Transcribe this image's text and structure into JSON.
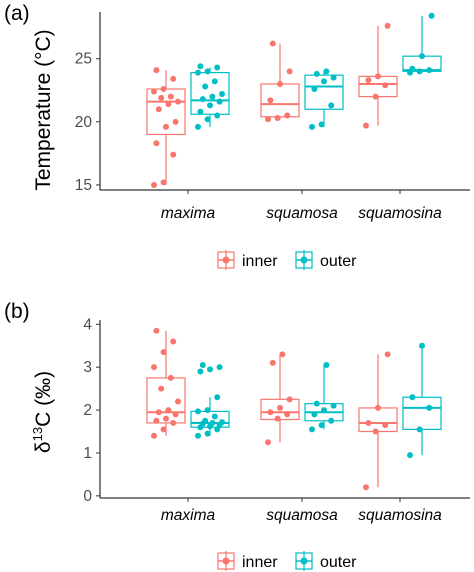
{
  "colors": {
    "inner": "#F8766D",
    "outer": "#00BFC4"
  },
  "legend": [
    "inner",
    "outer"
  ],
  "chart_data": [
    {
      "panel_tag": "(a)",
      "type": "box",
      "categories": [
        "maxima",
        "squamosa",
        "squamosina"
      ],
      "ylabel": "Temperature (°C)",
      "ylim": [
        14.6,
        28.7
      ],
      "yticks": [
        15,
        20,
        25
      ],
      "grid": false,
      "legend_position": "bottom",
      "series": [
        {
          "name": "inner",
          "boxes": [
            {
              "min": 15.0,
              "q1": 19.0,
              "median": 21.6,
              "q3": 22.6,
              "max": 24.1
            },
            {
              "min": 20.2,
              "q1": 20.4,
              "median": 21.4,
              "q3": 23.0,
              "max": 26.2
            },
            {
              "min": 19.7,
              "q1": 22.0,
              "median": 23.0,
              "q3": 23.6,
              "max": 27.6
            }
          ],
          "points": [
            [
              15.0,
              15.2,
              17.4,
              18.3,
              19.6,
              20.0,
              21.0,
              21.4,
              21.6,
              21.9,
              22.0,
              22.4,
              22.6,
              23.4,
              24.1
            ],
            [
              20.2,
              20.3,
              20.5,
              21.7,
              23.0,
              24.0,
              26.2
            ],
            [
              19.7,
              22.0,
              22.9,
              23.3,
              23.6,
              27.6
            ]
          ]
        },
        {
          "name": "outer",
          "boxes": [
            {
              "min": 19.6,
              "q1": 20.6,
              "median": 21.7,
              "q3": 23.9,
              "max": 24.3
            },
            {
              "min": 19.6,
              "q1": 21.0,
              "median": 22.8,
              "q3": 23.7,
              "max": 24.0
            },
            {
              "min": 23.9,
              "q1": 24.0,
              "median": 24.1,
              "q3": 25.2,
              "max": 28.4
            }
          ],
          "points": [
            [
              19.6,
              20.2,
              20.5,
              20.8,
              21.3,
              21.6,
              21.8,
              22.0,
              22.2,
              22.8,
              23.2,
              23.9,
              24.0,
              24.3,
              24.4
            ],
            [
              19.6,
              19.8,
              21.3,
              22.6,
              23.2,
              23.5,
              23.8,
              24.0
            ],
            [
              23.9,
              24.0,
              24.1,
              24.2,
              25.2,
              28.4
            ]
          ]
        }
      ]
    },
    {
      "panel_tag": "(b)",
      "type": "box",
      "categories": [
        "maxima",
        "squamosa",
        "squamosina"
      ],
      "ylabel_main": "δ",
      "ylabel_sup": "13",
      "ylabel_rest": "C (‰)",
      "ylim": [
        -0.05,
        4.1
      ],
      "yticks": [
        0,
        1,
        2,
        3,
        4
      ],
      "grid": false,
      "legend_position": "bottom",
      "series": [
        {
          "name": "inner",
          "boxes": [
            {
              "min": 1.4,
              "q1": 1.7,
              "median": 1.95,
              "q3": 2.75,
              "max": 3.85
            },
            {
              "min": 1.25,
              "q1": 1.78,
              "median": 1.95,
              "q3": 2.25,
              "max": 3.3
            },
            {
              "min": 0.2,
              "q1": 1.5,
              "median": 1.7,
              "q3": 2.05,
              "max": 3.3
            }
          ],
          "points": [
            [
              1.4,
              1.55,
              1.7,
              1.75,
              1.8,
              1.9,
              1.95,
              2.0,
              2.2,
              2.5,
              2.75,
              3.0,
              3.35,
              3.6,
              3.85
            ],
            [
              1.25,
              1.8,
              1.9,
              1.95,
              2.05,
              2.25,
              3.1,
              3.3
            ],
            [
              0.2,
              1.5,
              1.65,
              1.7,
              2.05,
              3.3
            ]
          ]
        },
        {
          "name": "outer",
          "boxes": [
            {
              "min": 1.4,
              "q1": 1.6,
              "median": 1.7,
              "q3": 1.97,
              "max": 2.3
            },
            {
              "min": 1.55,
              "q1": 1.75,
              "median": 1.95,
              "q3": 2.15,
              "max": 3.05
            },
            {
              "min": 0.95,
              "q1": 1.55,
              "median": 2.05,
              "q3": 2.3,
              "max": 3.5
            }
          ],
          "points": [
            [
              1.4,
              1.45,
              1.55,
              1.6,
              1.62,
              1.65,
              1.68,
              1.7,
              1.72,
              1.75,
              1.85,
              1.97,
              2.0,
              2.3,
              2.9,
              2.95,
              3.0,
              3.05
            ],
            [
              1.55,
              1.65,
              1.75,
              1.9,
              2.0,
              2.1,
              2.15,
              3.05
            ],
            [
              0.95,
              1.55,
              2.05,
              2.3,
              3.5
            ]
          ]
        }
      ]
    }
  ]
}
